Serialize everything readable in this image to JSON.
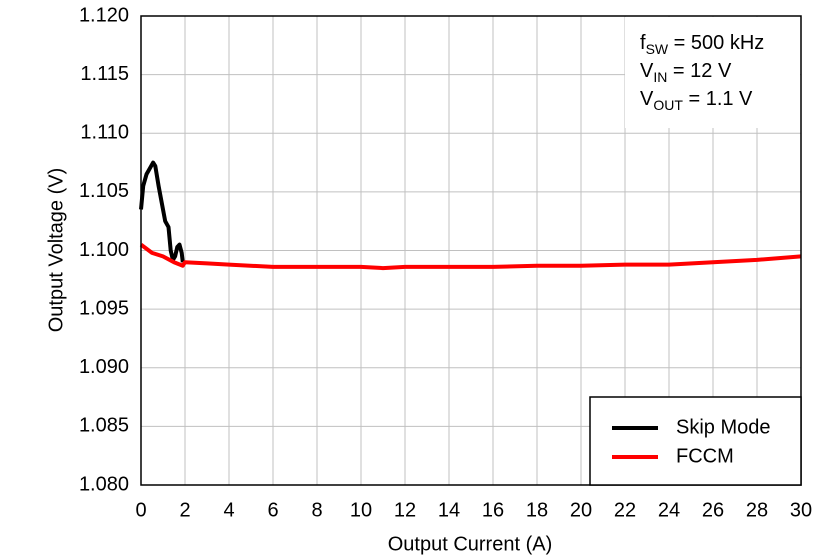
{
  "chart_data": {
    "type": "line",
    "x_label": "Output Current (A)",
    "y_label": "Output Voltage (V)",
    "xlim": [
      0,
      30
    ],
    "xticks": [
      0,
      2,
      4,
      6,
      8,
      10,
      12,
      14,
      16,
      18,
      20,
      22,
      24,
      26,
      28,
      30
    ],
    "ylim": [
      1.08,
      1.12
    ],
    "yticks": [
      {
        "value": 1.08,
        "label": "1.080"
      },
      1.085,
      {
        "value": 1.09,
        "label": "1.090"
      },
      1.095,
      {
        "value": 1.1,
        "label": "1.100"
      },
      1.105,
      {
        "value": 1.11,
        "label": "1.110"
      },
      1.115,
      {
        "value": 1.12,
        "label": "1.120"
      }
    ],
    "grid": true,
    "legend": "lower right",
    "annotations": [
      {
        "main": "f",
        "sub": "SW",
        "rest": " = 500 kHz"
      },
      {
        "main": "V",
        "sub": "IN",
        "rest": " = 12 V"
      },
      {
        "main": "V",
        "sub": "OUT",
        "rest": " = 1.1 V"
      }
    ],
    "series": [
      {
        "name": "Skip Mode",
        "color": "#000000",
        "x": [
          0,
          0.1,
          0.25,
          0.4,
          0.55,
          0.65,
          0.8,
          0.95,
          1.1,
          1.25,
          1.35,
          1.45,
          1.55,
          1.65,
          1.75,
          1.85,
          1.9
        ],
        "values": [
          1.1035,
          1.1055,
          1.1065,
          1.107,
          1.1075,
          1.1072,
          1.1055,
          1.104,
          1.1025,
          1.102,
          1.1,
          1.0992,
          1.0995,
          1.1003,
          1.1005,
          1.0998,
          1.099
        ]
      },
      {
        "name": "FCCM",
        "color": "#ff0000",
        "x": [
          0,
          0.5,
          1,
          1.5,
          1.9,
          2,
          3,
          4,
          6,
          8,
          10,
          11,
          12,
          14,
          16,
          18,
          20,
          22,
          24,
          26,
          28,
          30
        ],
        "values": [
          1.1005,
          1.0998,
          1.0995,
          1.099,
          1.0987,
          1.099,
          1.0989,
          1.0988,
          1.0986,
          1.0986,
          1.0986,
          1.0985,
          1.0986,
          1.0986,
          1.0986,
          1.0987,
          1.0987,
          1.0988,
          1.0988,
          1.099,
          1.0992,
          1.0995
        ]
      }
    ]
  }
}
